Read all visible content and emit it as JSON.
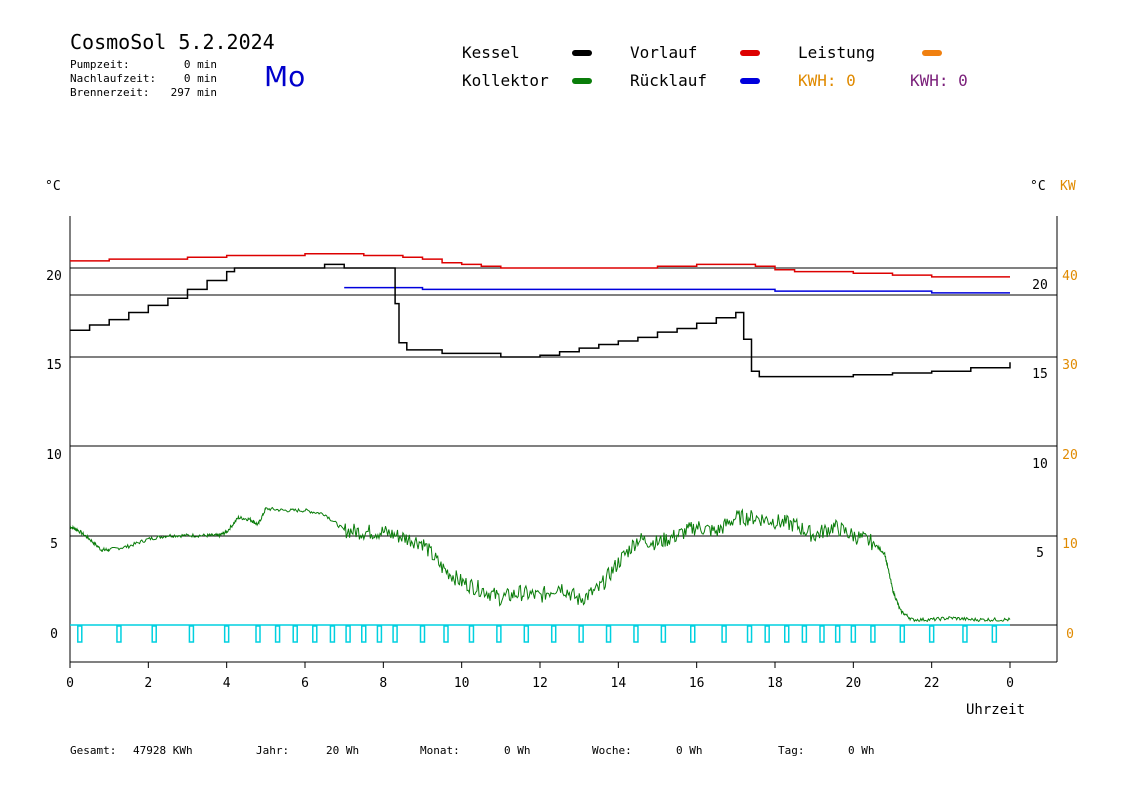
{
  "header": {
    "title": "CosmoSol 5.2.2024",
    "weekday": "Mo",
    "stats": [
      {
        "label": "Pumpzeit:",
        "value": "0 min"
      },
      {
        "label": "Nachlaufzeit:",
        "value": "0 min"
      },
      {
        "label": "Brennerzeit:",
        "value": "297 min"
      }
    ]
  },
  "legend": {
    "kessel": "Kessel",
    "kollektor": "Kollektor",
    "vorlauf": "Vorlauf",
    "ruecklauf": "Rücklauf",
    "leistung": "Leistung",
    "kwh_orange": "KWH: 0",
    "kwh_purple": "KWH: 0"
  },
  "footer": [
    {
      "label": "Gesamt:",
      "value": "47928 KWh"
    },
    {
      "label": "Jahr:",
      "value": "20 Wh"
    },
    {
      "label": "Monat:",
      "value": "0 Wh"
    },
    {
      "label": "Woche:",
      "value": "0 Wh"
    },
    {
      "label": "Tag:",
      "value": "0 Wh"
    }
  ],
  "colors": {
    "kessel": "#000000",
    "kollektor": "#0a7d0a",
    "vorlauf": "#dd0000",
    "ruecklauf": "#0000dd",
    "leistung": "#f08010",
    "pump": "#00d0e0",
    "kw_axis": "#e08a00"
  },
  "chart_data": {
    "type": "line",
    "xlabel": "Uhrzeit",
    "x_ticks": [
      "0",
      "2",
      "4",
      "6",
      "8",
      "10",
      "12",
      "14",
      "16",
      "18",
      "20",
      "22",
      "0"
    ],
    "xlim": [
      0,
      24
    ],
    "upper_panel": {
      "left_unit": "°C",
      "right_unit": "°C",
      "right_unit2": "KW",
      "left_ticks": [
        "20",
        "15"
      ],
      "right_ticks": [
        "20",
        "15"
      ],
      "right_kw_ticks": [
        "40",
        "30"
      ],
      "ylim": [
        10,
        22.5
      ],
      "series": [
        {
          "name": "Vorlauf",
          "x": [
            0,
            1,
            2,
            3,
            3.5,
            4,
            4.5,
            5,
            5.5,
            6,
            6.5,
            7,
            7.5,
            8,
            8.5,
            9,
            9.5,
            10,
            10.5,
            11,
            12,
            13,
            14,
            15,
            16,
            16.5,
            17,
            17.5,
            18,
            18.5,
            19,
            20,
            21,
            22,
            23,
            24
          ],
          "y": [
            20.4,
            20.5,
            20.5,
            20.6,
            20.6,
            20.7,
            20.7,
            20.7,
            20.7,
            20.8,
            20.8,
            20.8,
            20.7,
            20.7,
            20.6,
            20.5,
            20.3,
            20.2,
            20.1,
            20.0,
            20.0,
            20.0,
            20.0,
            20.1,
            20.2,
            20.2,
            20.2,
            20.1,
            19.9,
            19.8,
            19.8,
            19.7,
            19.6,
            19.5,
            19.5,
            19.5
          ]
        },
        {
          "name": "Rücklauf",
          "x": [
            7,
            8,
            9,
            10,
            11,
            12,
            13,
            14,
            15,
            16,
            17,
            18,
            19,
            20,
            21,
            22,
            23,
            24
          ],
          "y": [
            18.9,
            18.9,
            18.8,
            18.8,
            18.8,
            18.8,
            18.8,
            18.8,
            18.8,
            18.8,
            18.8,
            18.7,
            18.7,
            18.7,
            18.7,
            18.6,
            18.6,
            18.6
          ]
        },
        {
          "name": "Kessel",
          "x": [
            0,
            0.5,
            1,
            1.5,
            2,
            2.5,
            3,
            3.5,
            4,
            4.2,
            5,
            6,
            6.5,
            6.8,
            7,
            8,
            8.2,
            8.3,
            8.4,
            8.6,
            9,
            9.5,
            10,
            10.5,
            11,
            11.5,
            12,
            12.5,
            13,
            13.5,
            14,
            14.5,
            15,
            15.5,
            16,
            16.5,
            17,
            17.1,
            17.2,
            17.4,
            17.6,
            18,
            19,
            20,
            21,
            22,
            23,
            24
          ],
          "y": [
            16.5,
            16.8,
            17.1,
            17.5,
            17.9,
            18.3,
            18.8,
            19.3,
            19.8,
            20.0,
            20.0,
            20.0,
            20.2,
            20.2,
            20.0,
            20.0,
            20.0,
            18.0,
            15.8,
            15.4,
            15.4,
            15.2,
            15.2,
            15.2,
            15.0,
            15.0,
            15.1,
            15.3,
            15.5,
            15.7,
            15.9,
            16.1,
            16.4,
            16.6,
            16.9,
            17.2,
            17.5,
            17.5,
            16.0,
            14.2,
            13.9,
            13.9,
            13.9,
            14.0,
            14.1,
            14.2,
            14.4,
            14.7
          ]
        }
      ]
    },
    "lower_panel": {
      "left_ticks": [
        "10",
        "5",
        "0"
      ],
      "right_ticks": [
        "10",
        "5"
      ],
      "right_kw_ticks": [
        "20",
        "10",
        "0"
      ],
      "ylim": [
        -2,
        10
      ],
      "series": [
        {
          "name": "Kollektor",
          "x": [
            0,
            0.2,
            0.5,
            0.8,
            1,
            1.5,
            2,
            2.5,
            3,
            3.5,
            3.8,
            4,
            4.3,
            4.6,
            4.8,
            5,
            5.5,
            6,
            6.5,
            7,
            7.5,
            8,
            8.5,
            9,
            9.5,
            10,
            10.5,
            11,
            11.5,
            12,
            12.5,
            13,
            13.5,
            14,
            14.5,
            15,
            15.5,
            16,
            16.5,
            17,
            17.5,
            18,
            18.5,
            19,
            19.5,
            20,
            20.5,
            20.8,
            21,
            21.2,
            21.5,
            22,
            22.5,
            23,
            23.5,
            24
          ],
          "y": [
            5.5,
            5.3,
            4.8,
            4.2,
            4.2,
            4.4,
            4.8,
            5.0,
            5.0,
            5.0,
            5.0,
            5.2,
            6.0,
            5.9,
            5.6,
            6.5,
            6.4,
            6.4,
            6.2,
            5.3,
            5.2,
            5.2,
            4.9,
            4.6,
            3.2,
            2.4,
            2.0,
            1.5,
            1.8,
            1.6,
            2.2,
            1.4,
            2.0,
            3.5,
            4.8,
            4.6,
            5.0,
            5.5,
            5.2,
            6.0,
            6.0,
            5.8,
            5.6,
            5.0,
            5.5,
            5.0,
            4.6,
            4.0,
            2.0,
            0.8,
            0.3,
            0.3,
            0.4,
            0.3,
            0.3,
            0.3
          ]
        }
      ],
      "pump_marks_hours": [
        0.25,
        1.25,
        2.15,
        3.1,
        4.0,
        4.8,
        5.3,
        5.75,
        6.25,
        6.7,
        7.1,
        7.5,
        7.9,
        8.3,
        9.0,
        9.6,
        10.25,
        10.95,
        11.65,
        12.35,
        13.05,
        13.75,
        14.45,
        15.15,
        15.9,
        16.7,
        17.35,
        17.8,
        18.3,
        18.75,
        19.2,
        19.6,
        20.0,
        20.5,
        21.25,
        22.0,
        22.85,
        23.6
      ]
    }
  }
}
